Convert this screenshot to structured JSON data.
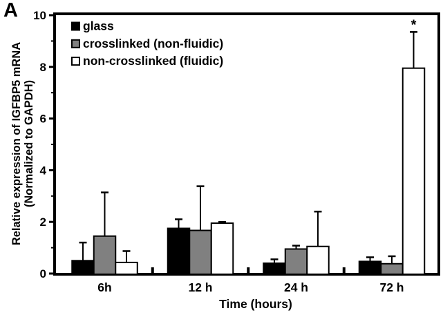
{
  "panel_label": "A",
  "colors": {
    "axis": "#000000",
    "background": "#ffffff",
    "bar_black": "#000000",
    "bar_gray": "#808080",
    "bar_white": "#ffffff"
  },
  "chart_data": {
    "type": "bar",
    "title": "",
    "xlabel": "Time (hours)",
    "ylabel_lines": [
      "Relative expression of IGFBP5 mRNA",
      "(Normalized to GAPDH)"
    ],
    "categories": [
      "6h",
      "12 h",
      "24 h",
      "72 h"
    ],
    "series": [
      {
        "name": "glass",
        "fill": "#000000",
        "values": [
          0.5,
          1.75,
          0.4,
          0.47
        ],
        "errors_up": [
          0.7,
          0.35,
          0.15,
          0.16
        ]
      },
      {
        "name": "crosslinked (non-fluidic)",
        "fill": "#808080",
        "values": [
          1.45,
          1.67,
          0.95,
          0.38
        ],
        "errors_up": [
          1.69,
          1.71,
          0.13,
          0.29
        ]
      },
      {
        "name": "non-crosslinked (fluidic)",
        "fill": "#ffffff",
        "values": [
          0.43,
          1.95,
          1.05,
          7.95
        ],
        "errors_up": [
          0.44,
          0.05,
          1.35,
          1.4
        ]
      }
    ],
    "ylim": [
      0,
      10
    ],
    "y_major_ticks": [
      0,
      2,
      4,
      6,
      8,
      10
    ],
    "y_minor_ticks": [
      1,
      3,
      5,
      7,
      9
    ],
    "grid": false,
    "legend_position": "top-left-inside",
    "annotations": [
      {
        "text": "*",
        "series_index": 2,
        "category_index": 3
      }
    ]
  }
}
